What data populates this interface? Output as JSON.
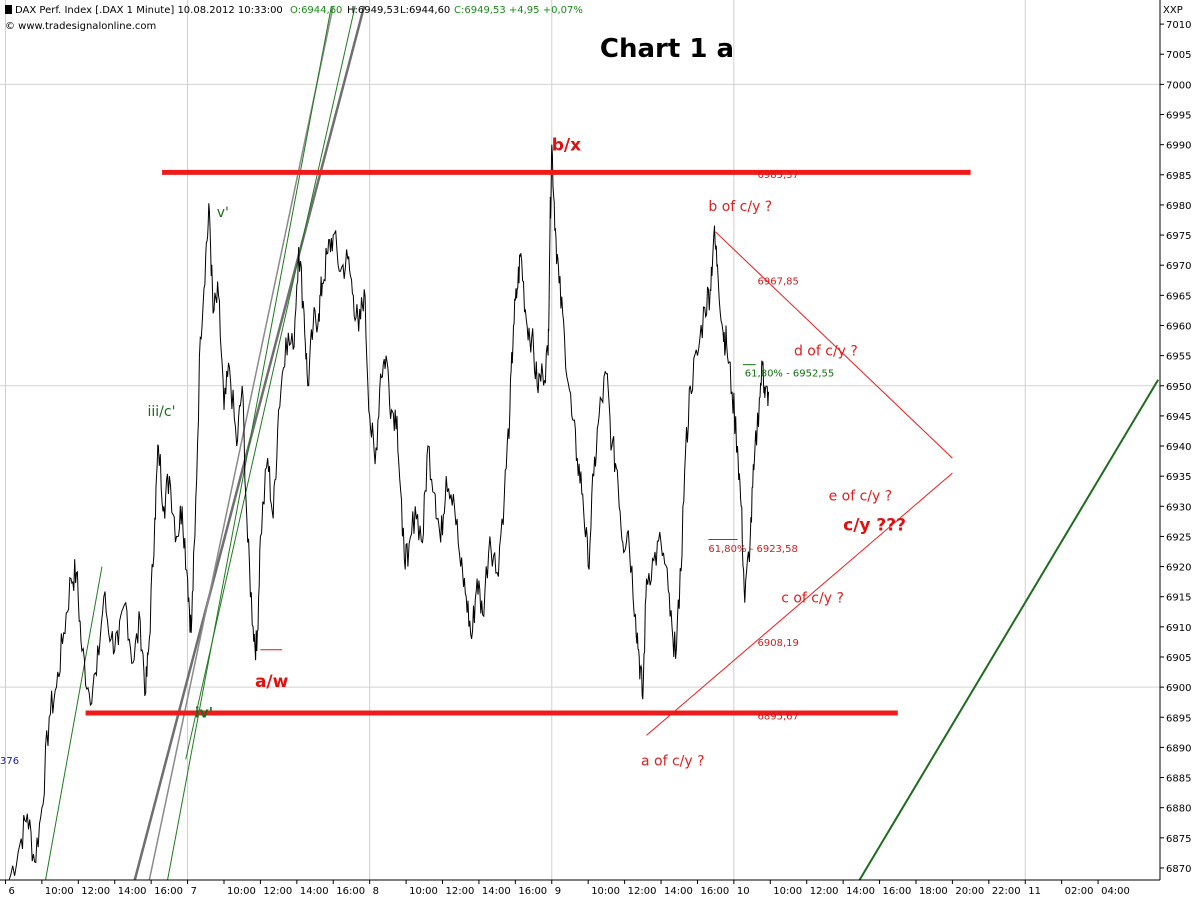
{
  "header": {
    "symbol_text": "DAX Perf. Index [.DAX  1 Minute] 10.08.2012 10:33:00",
    "open": "O:6944,60",
    "high": "H:6949,53",
    "low": "L:6944,60",
    "close": "C:6949,53 +4,95 +0,07%",
    "copyright": "© www.tradesignalonline.com",
    "corner_label": "XXP",
    "left_stub": "376"
  },
  "chart_data": {
    "type": "line",
    "title": "Chart 1 a",
    "xlabel": "",
    "ylabel": "",
    "ylim": [
      6868,
      7014
    ],
    "grid": true,
    "y_ticks": [
      6870,
      6875,
      6880,
      6885,
      6890,
      6895,
      6900,
      6905,
      6910,
      6915,
      6920,
      6925,
      6930,
      6935,
      6940,
      6945,
      6950,
      6955,
      6960,
      6965,
      6970,
      6975,
      6980,
      6985,
      6990,
      6995,
      7000,
      7005,
      7010
    ],
    "x_ticks": [
      "6",
      "10:00",
      "12:00",
      "14:00",
      "16:00",
      "7",
      "10:00",
      "12:00",
      "14:00",
      "16:00",
      "8",
      "10:00",
      "12:00",
      "14:00",
      "16:00",
      "9",
      "10:00",
      "12:00",
      "14:00",
      "16:00",
      "10",
      "10:00",
      "12:00",
      "14:00",
      "16:00",
      "18:00",
      "20:00",
      "22:00",
      "11",
      "02:00",
      "04:00"
    ],
    "x_tick_index": [
      0,
      1,
      2,
      3,
      4,
      5,
      6,
      7,
      8,
      9,
      10,
      11,
      12,
      13,
      14,
      15,
      16,
      17,
      18,
      19,
      20,
      21,
      22,
      23,
      24,
      25,
      26,
      27,
      28,
      29,
      30
    ],
    "x_range": [
      -0.15,
      31.7
    ],
    "series": [
      {
        "values": [
          [
            0.1,
            6868
          ],
          [
            0.4,
            6874
          ],
          [
            0.6,
            6879
          ],
          [
            0.8,
            6871
          ],
          [
            1.0,
            6880
          ],
          [
            1.2,
            6895
          ],
          [
            1.4,
            6900
          ],
          [
            1.6,
            6909
          ],
          [
            1.8,
            6918
          ],
          [
            1.95,
            6919
          ],
          [
            2.1,
            6906
          ],
          [
            2.3,
            6899
          ],
          [
            2.5,
            6902
          ],
          [
            2.7,
            6915
          ],
          [
            2.9,
            6908
          ],
          [
            3.1,
            6907
          ],
          [
            3.3,
            6914
          ],
          [
            3.5,
            6904
          ],
          [
            3.7,
            6911
          ],
          [
            3.85,
            6899
          ],
          [
            3.95,
            6908
          ],
          [
            4.1,
            6928
          ],
          [
            4.2,
            6940
          ],
          [
            4.35,
            6930
          ],
          [
            4.5,
            6935
          ],
          [
            4.7,
            6925
          ],
          [
            4.85,
            6930
          ],
          [
            5.0,
            6918
          ],
          [
            5.1,
            6909
          ],
          [
            5.2,
            6925
          ],
          [
            5.35,
            6958
          ],
          [
            5.5,
            6972
          ],
          [
            5.6,
            6979
          ],
          [
            5.7,
            6962
          ],
          [
            5.85,
            6965
          ],
          [
            6.0,
            6946
          ],
          [
            6.15,
            6953
          ],
          [
            6.35,
            6940
          ],
          [
            6.5,
            6950
          ],
          [
            6.65,
            6924
          ],
          [
            6.8,
            6910
          ],
          [
            6.9,
            6906
          ],
          [
            7.0,
            6925
          ],
          [
            7.2,
            6938
          ],
          [
            7.35,
            6928
          ],
          [
            7.5,
            6946
          ],
          [
            7.7,
            6958
          ],
          [
            7.9,
            6956
          ],
          [
            8.05,
            6973
          ],
          [
            8.2,
            6962
          ],
          [
            8.3,
            6950
          ],
          [
            8.45,
            6960
          ],
          [
            8.6,
            6962
          ],
          [
            8.7,
            6967
          ],
          [
            8.85,
            6972
          ],
          [
            9.0,
            6975
          ],
          [
            9.2,
            6969
          ],
          [
            9.4,
            6971
          ],
          [
            9.55,
            6965
          ],
          [
            9.7,
            6959
          ],
          [
            9.85,
            6966
          ],
          [
            10.0,
            6945
          ],
          [
            10.15,
            6937
          ],
          [
            10.3,
            6952
          ],
          [
            10.45,
            6955
          ],
          [
            10.6,
            6946
          ],
          [
            10.75,
            6945
          ],
          [
            10.9,
            6925
          ],
          [
            11.05,
            6920
          ],
          [
            11.25,
            6930
          ],
          [
            11.45,
            6924
          ],
          [
            11.6,
            6940
          ],
          [
            11.8,
            6932
          ],
          [
            11.95,
            6924
          ],
          [
            12.1,
            6935
          ],
          [
            12.3,
            6932
          ],
          [
            12.5,
            6920
          ],
          [
            12.65,
            6915
          ],
          [
            12.8,
            6908
          ],
          [
            12.95,
            6918
          ],
          [
            13.1,
            6912
          ],
          [
            13.3,
            6925
          ],
          [
            13.5,
            6919
          ],
          [
            13.7,
            6932
          ],
          [
            13.85,
            6946
          ],
          [
            13.95,
            6960
          ],
          [
            14.05,
            6966
          ],
          [
            14.15,
            6972
          ],
          [
            14.3,
            6961
          ],
          [
            14.45,
            6958
          ],
          [
            14.6,
            6950
          ],
          [
            14.75,
            6952
          ],
          [
            14.9,
            6955
          ],
          [
            14.95,
            6976
          ],
          [
            15.0,
            6990
          ],
          [
            15.1,
            6976
          ],
          [
            15.2,
            6967
          ],
          [
            15.35,
            6958
          ],
          [
            15.55,
            6945
          ],
          [
            15.7,
            6938
          ],
          [
            15.85,
            6932
          ],
          [
            16.0,
            6920
          ],
          [
            16.15,
            6935
          ],
          [
            16.3,
            6945
          ],
          [
            16.5,
            6952
          ],
          [
            16.65,
            6940
          ],
          [
            16.8,
            6936
          ],
          [
            16.95,
            6924
          ],
          [
            17.1,
            6926
          ],
          [
            17.3,
            6912
          ],
          [
            17.4,
            6905
          ],
          [
            17.5,
            6898
          ],
          [
            17.6,
            6918
          ],
          [
            17.8,
            6921
          ],
          [
            18.0,
            6924
          ],
          [
            18.2,
            6916
          ],
          [
            18.35,
            6905
          ],
          [
            18.5,
            6913
          ],
          [
            18.65,
            6936
          ],
          [
            18.8,
            6950
          ],
          [
            19.0,
            6955
          ],
          [
            19.2,
            6963
          ],
          [
            19.35,
            6966
          ],
          [
            19.45,
            6975
          ],
          [
            19.55,
            6970
          ],
          [
            19.7,
            6959
          ],
          [
            19.8,
            6957
          ],
          [
            19.95,
            6949
          ],
          [
            20.1,
            6940
          ],
          [
            20.2,
            6930
          ],
          [
            20.3,
            6914
          ],
          [
            20.45,
            6925
          ],
          [
            20.55,
            6936
          ],
          [
            20.7,
            6948
          ],
          [
            20.8,
            6954
          ],
          [
            20.85,
            6948
          ],
          [
            20.95,
            6949
          ]
        ]
      }
    ],
    "levels": [
      {
        "value": 6985.37,
        "label": "6985,37",
        "color": "#ee1b1b"
      },
      {
        "value": 6895.67,
        "label": "6895,67",
        "color": "#ee1b1b"
      },
      {
        "value": 6967.85,
        "label": "6967,85",
        "color": "#cc1e1e"
      },
      {
        "value": 6908.19,
        "label": "6908,19",
        "color": "#cc1e1e"
      },
      {
        "value": 6952.55,
        "label": "61,80% - 6952,55",
        "color": "#147014"
      },
      {
        "value": 6923.58,
        "label": "61,80% - 6923,58",
        "color": "#cc1e1e"
      }
    ],
    "annotations": [
      {
        "text": "b/x",
        "x": 15.0,
        "y": 6989,
        "style": "red-bold"
      },
      {
        "text": "b of c/y ?",
        "x": 19.3,
        "y": 6979,
        "style": "red"
      },
      {
        "text": "d of c/y ?",
        "x": 21.65,
        "y": 6955,
        "style": "red"
      },
      {
        "text": "e of c/y ?",
        "x": 22.6,
        "y": 6931,
        "style": "red"
      },
      {
        "text": "c/y ???",
        "x": 23.0,
        "y": 6926,
        "style": "red-bold"
      },
      {
        "text": "c of c/y ?",
        "x": 21.3,
        "y": 6914,
        "style": "red"
      },
      {
        "text": "a of c/y ?",
        "x": 17.45,
        "y": 6887,
        "style": "red"
      },
      {
        "text": "a/w",
        "x": 6.85,
        "y": 6900,
        "style": "red-bold"
      },
      {
        "text": "v'",
        "x": 5.8,
        "y": 6978,
        "style": "green"
      },
      {
        "text": "iii/c'",
        "x": 3.9,
        "y": 6945,
        "style": "green"
      },
      {
        "text": "iv'",
        "x": 5.2,
        "y": 6895,
        "style": "green-bold"
      }
    ],
    "colors": {
      "price": "#000000",
      "support_resistance": "#ee1b1b",
      "triangle": "#ee1b1b",
      "trend_green": "#1f6b1f",
      "channel_grey": "#6f6f6f",
      "grid": "#d2d2d2"
    }
  }
}
